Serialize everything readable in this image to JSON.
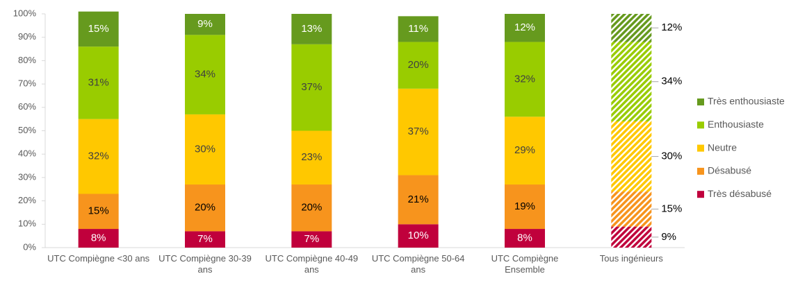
{
  "chart_data": {
    "type": "stacked_bar_percent",
    "categories": [
      "UTC Compiègne <30 ans",
      "UTC Compiègne 30-39 ans",
      "UTC Compiègne 40-49 ans",
      "UTC Compiègne 50-64 ans",
      "UTC Compiègne Ensemble",
      "Tous ingénieurs"
    ],
    "bar_styles": [
      "solid",
      "solid",
      "solid",
      "solid",
      "solid",
      "hatched"
    ],
    "series": [
      {
        "name": "Très désabusé",
        "color": "#c0003c",
        "label_color": "#ffffff",
        "values": [
          8,
          7,
          7,
          10,
          8,
          9
        ],
        "value_labels": [
          "8%",
          "7%",
          "7%",
          "10%",
          "8%",
          "9%"
        ]
      },
      {
        "name": "Désabusé",
        "color": "#f7941d",
        "label_color": "#000000",
        "values": [
          15,
          20,
          20,
          21,
          19,
          15
        ],
        "value_labels": [
          "15%",
          "20%",
          "20%",
          "21%",
          "19%",
          "15%"
        ]
      },
      {
        "name": "Neutre",
        "color": "#ffc800",
        "label_color": "#404040",
        "values": [
          32,
          30,
          23,
          37,
          29,
          30
        ],
        "value_labels": [
          "32%",
          "30%",
          "23%",
          "37%",
          "29%",
          "30%"
        ]
      },
      {
        "name": "Enthousiaste",
        "color": "#99cc00",
        "label_color": "#404040",
        "values": [
          31,
          34,
          37,
          20,
          32,
          34
        ],
        "value_labels": [
          "31%",
          "34%",
          "37%",
          "20%",
          "32%",
          "34%"
        ]
      },
      {
        "name": "Très enthousiaste",
        "color": "#669a1e",
        "label_color": "#ffffff",
        "values": [
          15,
          9,
          13,
          11,
          12,
          12
        ],
        "value_labels": [
          "15%",
          "9%",
          "13%",
          "11%",
          "12%",
          "12%"
        ]
      }
    ],
    "ylim": [
      0,
      100
    ],
    "yticks": [
      {
        "value": 0,
        "label": "0%"
      },
      {
        "value": 10,
        "label": "10%"
      },
      {
        "value": 20,
        "label": "20%"
      },
      {
        "value": 30,
        "label": "30%"
      },
      {
        "value": 40,
        "label": "40%"
      },
      {
        "value": 50,
        "label": "50%"
      },
      {
        "value": 60,
        "label": "60%"
      },
      {
        "value": 70,
        "label": "70%"
      },
      {
        "value": 80,
        "label": "80%"
      },
      {
        "value": 90,
        "label": "90%"
      },
      {
        "value": 100,
        "label": "100%"
      }
    ],
    "legend": "right",
    "grid": false
  }
}
